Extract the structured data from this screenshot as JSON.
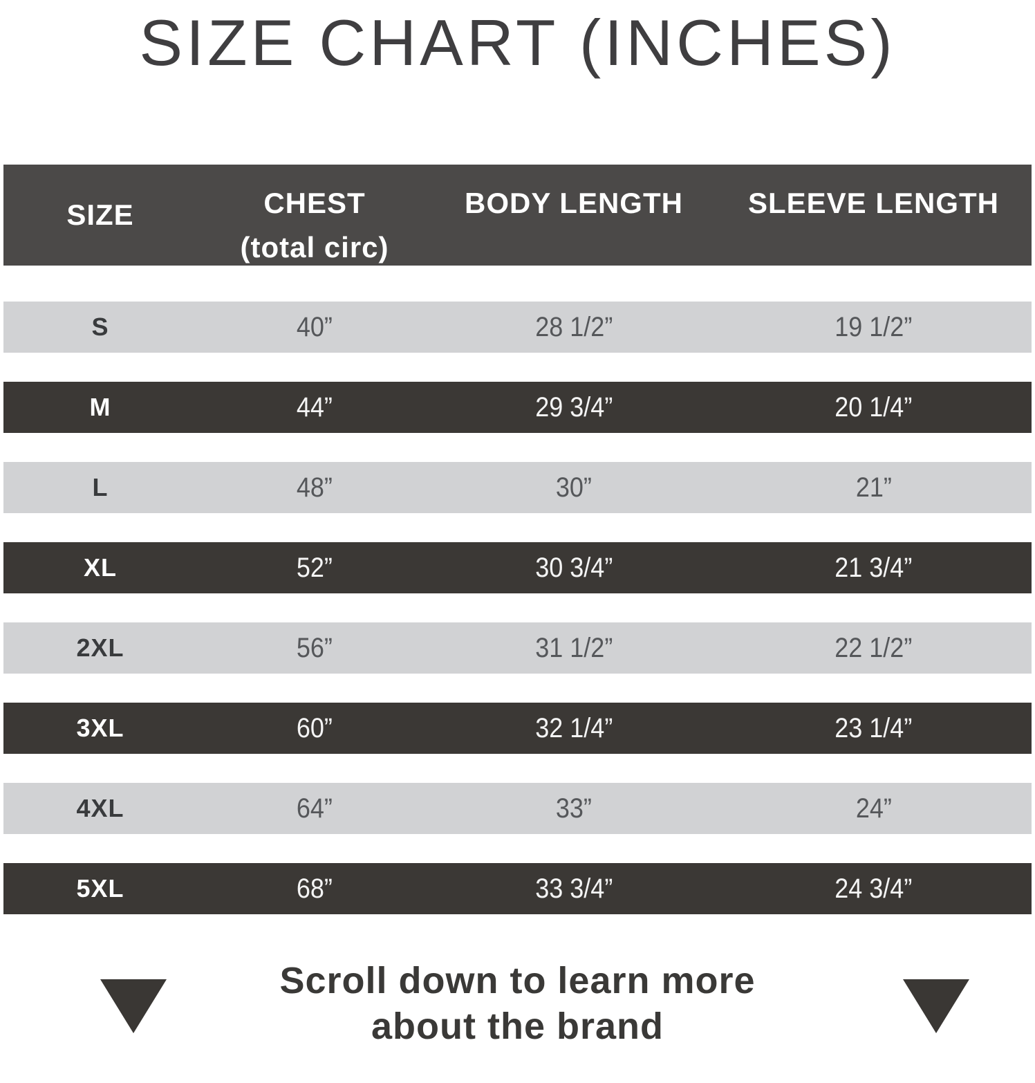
{
  "title": "SIZE CHART (INCHES)",
  "table": {
    "headers": [
      {
        "line1": "SIZE",
        "line2": ""
      },
      {
        "line1": "CHEST",
        "line2": "(total circ)"
      },
      {
        "line1": "BODY LENGTH",
        "line2": ""
      },
      {
        "line1": "SLEEVE LENGTH",
        "line2": ""
      }
    ]
  },
  "chart_data": {
    "type": "table",
    "title": "SIZE CHART (INCHES)",
    "columns": [
      "SIZE",
      "CHEST (total circ)",
      "BODY LENGTH",
      "SLEEVE LENGTH"
    ],
    "rows": [
      [
        "S",
        "40”",
        "28 1/2”",
        "19 1/2”"
      ],
      [
        "M",
        "44”",
        "29 3/4”",
        "20 1/4”"
      ],
      [
        "L",
        "48”",
        "30”",
        "21”"
      ],
      [
        "XL",
        "52”",
        "30 3/4”",
        "21 3/4”"
      ],
      [
        "2XL",
        "56”",
        "31 1/2”",
        "22 1/2”"
      ],
      [
        "3XL",
        "60”",
        "32 1/4”",
        "23 1/4”"
      ],
      [
        "4XL",
        "64”",
        "33”",
        "24”"
      ],
      [
        "5XL",
        "68”",
        "33 3/4”",
        "24 3/4”"
      ]
    ],
    "layout": {
      "row_striping": [
        "light",
        "dark"
      ],
      "units": "inches"
    }
  },
  "footer": {
    "line1": "Scroll down to learn more",
    "line2": "about the brand"
  },
  "icons": {
    "left": "down-triangle-icon",
    "right": "down-triangle-icon"
  },
  "colors": {
    "header_bg": "#4b4948",
    "row_dark_bg": "#3b3835",
    "row_light_bg": "#d1d2d4",
    "title_color": "#3f3e40",
    "footer_color": "#3a3937",
    "triangle_color": "#3a3734"
  }
}
